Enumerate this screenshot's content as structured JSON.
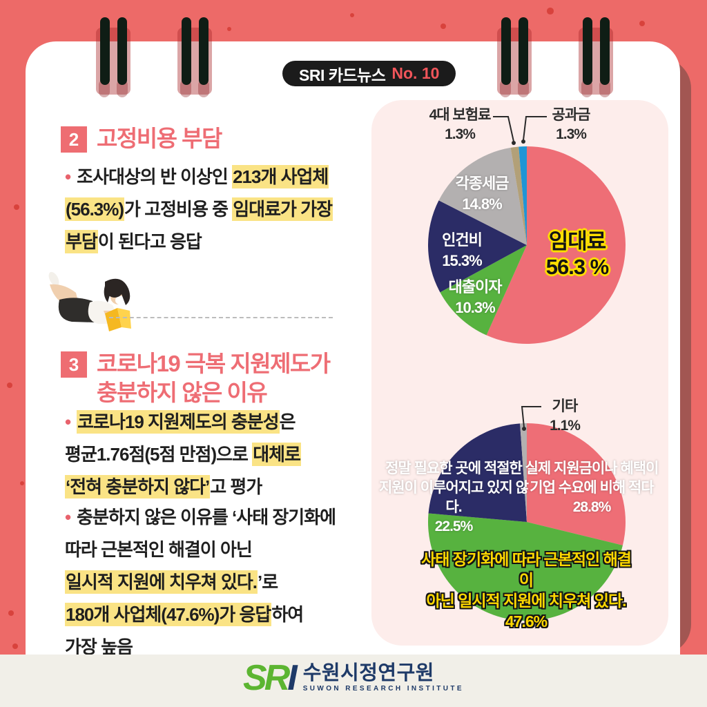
{
  "header": {
    "badge_title": "SRI 카드뉴스",
    "badge_no": "No. 10"
  },
  "colors": {
    "background": "#ed6a68",
    "card": "#ffffff",
    "panel": "#fdedeb",
    "accent_pink": "#ee6d74",
    "highlight_yellow": "#fae385",
    "footer_bg": "#f1efe8",
    "logo_green": "#5cb531",
    "logo_navy": "#1e3a68",
    "badge_red": "#f2555a",
    "pie_pink": "#ee6e76",
    "pie_green": "#57b23f",
    "pie_navy": "#2b2c66",
    "pie_gray": "#b3b0b0",
    "pie_tan": "#b2a078",
    "pie_blue": "#2095d5"
  },
  "section2": {
    "num": "2",
    "title": "고정비용 부담",
    "bullet": [
      {
        "t": "조사대상의 반 이상인 "
      },
      {
        "t": "213개 사업체",
        "h": true
      },
      {
        "br": true
      },
      {
        "t": "(56.3%)",
        "h": true
      },
      {
        "t": "가 고정비용 중 "
      },
      {
        "t": "임대료가 가장",
        "h": true
      },
      {
        "br": true
      },
      {
        "t": "부담",
        "h": true
      },
      {
        "t": "이 된다고 응답"
      }
    ]
  },
  "section3": {
    "num": "3",
    "title1": "코로나19 극복 지원제도가",
    "title2": "충분하지 않은 이유",
    "bullet1": [
      {
        "t": "코로나19 지원제도의 충분성",
        "h": true
      },
      {
        "t": "은"
      },
      {
        "br": true
      },
      {
        "t": "평균1.76점(5점 만점)으로 "
      },
      {
        "t": "대체로",
        "h": true
      },
      {
        "br": true
      },
      {
        "t": "‘전혀 충분하지 않다’",
        "h": true
      },
      {
        "t": "고 평가"
      }
    ],
    "bullet2": [
      {
        "t": "충분하지 않은 이유를 ‘사태 장기화에"
      },
      {
        "br": true
      },
      {
        "t": "따라 근본적인 해결이 아닌"
      },
      {
        "br": true
      },
      {
        "t": "일시적 지원에 치우쳐 있다.",
        "h": true
      },
      {
        "t": "’로"
      },
      {
        "br": true
      },
      {
        "t": "180개 사업체(47.6%)가 응답",
        "h": true
      },
      {
        "t": "하여"
      },
      {
        "br": true
      },
      {
        "t": "가장 높음"
      }
    ]
  },
  "chart_data": [
    {
      "type": "pie",
      "title": "",
      "start_angle_deg": -90,
      "direction": "clockwise",
      "legend": "none",
      "slices": [
        {
          "label": "임대료",
          "value": 56.3,
          "color": "#ee6e76",
          "label_inside": true
        },
        {
          "label": "대출이자",
          "value": 10.3,
          "color": "#57b23f",
          "label_inside": true
        },
        {
          "label": "인건비",
          "value": 15.3,
          "color": "#2b2c66",
          "label_inside": true
        },
        {
          "label": "각종세금",
          "value": 14.8,
          "color": "#b3b0b0",
          "label_inside": true
        },
        {
          "label": "4대 보험료",
          "value": 1.3,
          "color": "#b2a078",
          "label_inside": false
        },
        {
          "label": "공과금",
          "value": 1.3,
          "color": "#2095d5",
          "label_inside": false
        }
      ]
    },
    {
      "type": "pie",
      "title": "",
      "start_angle_deg": -90,
      "direction": "clockwise",
      "legend": "none",
      "slices": [
        {
          "label": "실제 지원금이나 혜택이 기업 수요에 비해 적다",
          "value": 28.8,
          "color": "#ee6e76",
          "label_inside": true
        },
        {
          "label": "사태 장기화에 따라 근본적인 해결이 아닌 일시적 지원에 치우쳐 있다.",
          "value": 47.6,
          "color": "#57b23f",
          "label_inside": true
        },
        {
          "label": "정말 필요한 곳에 적절한 지원이 이루어지고 있지 않다.",
          "value": 22.5,
          "color": "#2b2c66",
          "label_inside": true
        },
        {
          "label": "기타",
          "value": 1.1,
          "color": "#b3b0b0",
          "label_inside": false
        }
      ]
    }
  ],
  "pie1_callouts": {
    "insurance": {
      "line1": "4대 보험료",
      "line2": "1.3%"
    },
    "utilities": {
      "line1": "공과금",
      "line2": "1.3%"
    },
    "taxes": {
      "line1": "각종세금",
      "line2": "14.8%"
    },
    "labor": {
      "line1": "인건비",
      "line2": "15.3%"
    },
    "loan": {
      "line1": "대출이자",
      "line2": "10.3%"
    },
    "rent": {
      "line1": "임대료",
      "line2": "56.3 %"
    }
  },
  "pie2_callouts": {
    "etc": {
      "line1": "기타",
      "line2": "1.1%"
    },
    "insufficient": {
      "line1": "실제 지원금이나 혜택이",
      "line2": "기업 수요에 비해 적다",
      "line3": "28.8%"
    },
    "misallocated": {
      "line1": "정말 필요한 곳에 적절한",
      "line2": "지원이 이루어지고 있지 않다.",
      "line3": "22.5%"
    },
    "temporary": {
      "line1": "사태 장기화에 따라 근본적인 해결이",
      "line2": "아닌 일시적 지원에 치우쳐 있다.",
      "line3": "47.6%"
    }
  },
  "footer": {
    "logo_s": "S",
    "logo_r": "R",
    "logo_i": "I",
    "org_kr": "수원시정연구원",
    "org_en": "SUWON RESEARCH INSTITUTE"
  }
}
